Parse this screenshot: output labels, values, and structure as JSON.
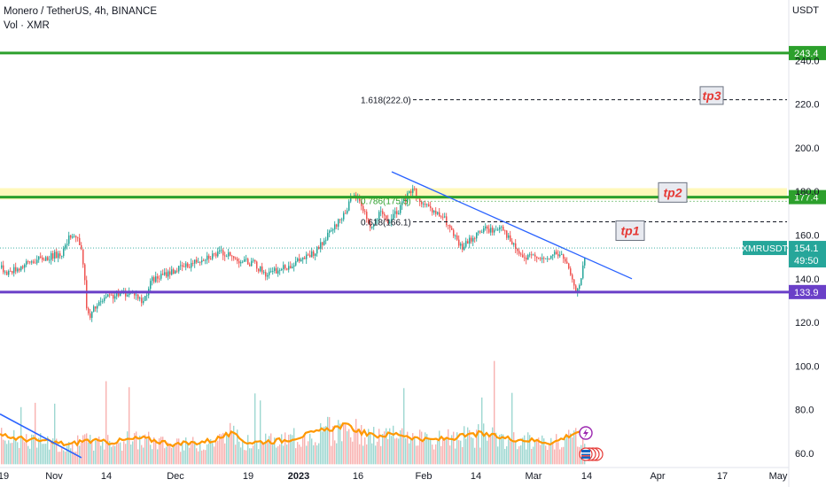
{
  "header": {
    "symbol_line": "Monero / TetherUS, 4h, BINANCE",
    "volume_line": "Vol · XMR",
    "currency": "USDT"
  },
  "chart_data": {
    "type": "candlestick",
    "ylim": [
      55,
      262
    ],
    "y_ticks": [
      60,
      80,
      100,
      120,
      140,
      160,
      180,
      200,
      220,
      240
    ],
    "y_tick_labels": [
      "60.0",
      "80.0",
      "100.0",
      "120.0",
      "140.0",
      "160.0",
      "180.0",
      "200.0",
      "220.0",
      "240.0"
    ],
    "x_tick_labels": [
      "19",
      "Nov",
      "14",
      "Dec",
      "19",
      "2023",
      "16",
      "Feb",
      "14",
      "Mar",
      "14",
      "Apr",
      "17",
      "May"
    ],
    "x_tick_bold": "2023",
    "price_path_key": [
      [
        0,
        145
      ],
      [
        8,
        143
      ],
      [
        20,
        145
      ],
      [
        35,
        148
      ],
      [
        55,
        150
      ],
      [
        70,
        152
      ],
      [
        80,
        161
      ],
      [
        88,
        158
      ],
      [
        93,
        148
      ],
      [
        97,
        128
      ],
      [
        100,
        121
      ],
      [
        105,
        126
      ],
      [
        118,
        131
      ],
      [
        135,
        133
      ],
      [
        150,
        134
      ],
      [
        160,
        129
      ],
      [
        170,
        139
      ],
      [
        190,
        143
      ],
      [
        210,
        146
      ],
      [
        230,
        150
      ],
      [
        250,
        152
      ],
      [
        265,
        149
      ],
      [
        285,
        147
      ],
      [
        300,
        142
      ],
      [
        320,
        145
      ],
      [
        340,
        149
      ],
      [
        355,
        152
      ],
      [
        370,
        160
      ],
      [
        385,
        168
      ],
      [
        395,
        176
      ],
      [
        400,
        178
      ],
      [
        407,
        174
      ],
      [
        418,
        163
      ],
      [
        428,
        170
      ],
      [
        438,
        166
      ],
      [
        448,
        171
      ],
      [
        456,
        176
      ],
      [
        465,
        182
      ],
      [
        472,
        176
      ],
      [
        485,
        171
      ],
      [
        500,
        168
      ],
      [
        512,
        159
      ],
      [
        520,
        154
      ],
      [
        530,
        158
      ],
      [
        545,
        163
      ],
      [
        558,
        162
      ],
      [
        565,
        165
      ],
      [
        575,
        157
      ],
      [
        590,
        149
      ],
      [
        605,
        151
      ],
      [
        615,
        148
      ],
      [
        625,
        152
      ],
      [
        635,
        150
      ],
      [
        642,
        143
      ],
      [
        648,
        134
      ],
      [
        655,
        140
      ],
      [
        660,
        152
      ]
    ],
    "volume_path_key": [
      [
        0,
        68
      ],
      [
        40,
        66
      ],
      [
        80,
        64
      ],
      [
        95,
        66
      ],
      [
        120,
        65
      ],
      [
        160,
        67
      ],
      [
        200,
        64
      ],
      [
        240,
        66
      ],
      [
        260,
        69
      ],
      [
        280,
        65
      ],
      [
        320,
        66
      ],
      [
        360,
        70
      ],
      [
        390,
        73
      ],
      [
        400,
        71
      ],
      [
        420,
        68
      ],
      [
        450,
        69
      ],
      [
        480,
        66
      ],
      [
        510,
        67
      ],
      [
        540,
        69
      ],
      [
        570,
        67
      ],
      [
        600,
        66
      ],
      [
        625,
        65
      ],
      [
        640,
        68
      ],
      [
        658,
        71
      ]
    ],
    "levels": [
      {
        "value": 243.4,
        "label": "243.4",
        "color": "#2ca02c"
      },
      {
        "value": 177.4,
        "label": "177.4",
        "color": "#2ca02c"
      },
      {
        "value": 133.9,
        "label": "133.9",
        "color": "#6a3fc8"
      }
    ],
    "fib_lines": [
      {
        "value": 222.0,
        "label": "1.618(222.0)"
      },
      {
        "value": 166.1,
        "label": "0.618(166.1)"
      },
      {
        "value": 175.5,
        "label": "0.786(175.5)"
      }
    ],
    "targets": [
      {
        "label": "tp3"
      },
      {
        "label": "tp2"
      },
      {
        "label": "tp1"
      }
    ],
    "last_price": {
      "symbol": "XMRUSDT",
      "value": "154.1",
      "countdown": "49:50"
    }
  },
  "colors": {
    "up": "#26a69a",
    "down": "#ef5350",
    "trend": "#2962ff",
    "volume_ma": "#ff9800",
    "level_green": "#2ca02c",
    "level_purple": "#6a3fc8",
    "zone": "#fff59d",
    "target_text": "#e53935"
  }
}
